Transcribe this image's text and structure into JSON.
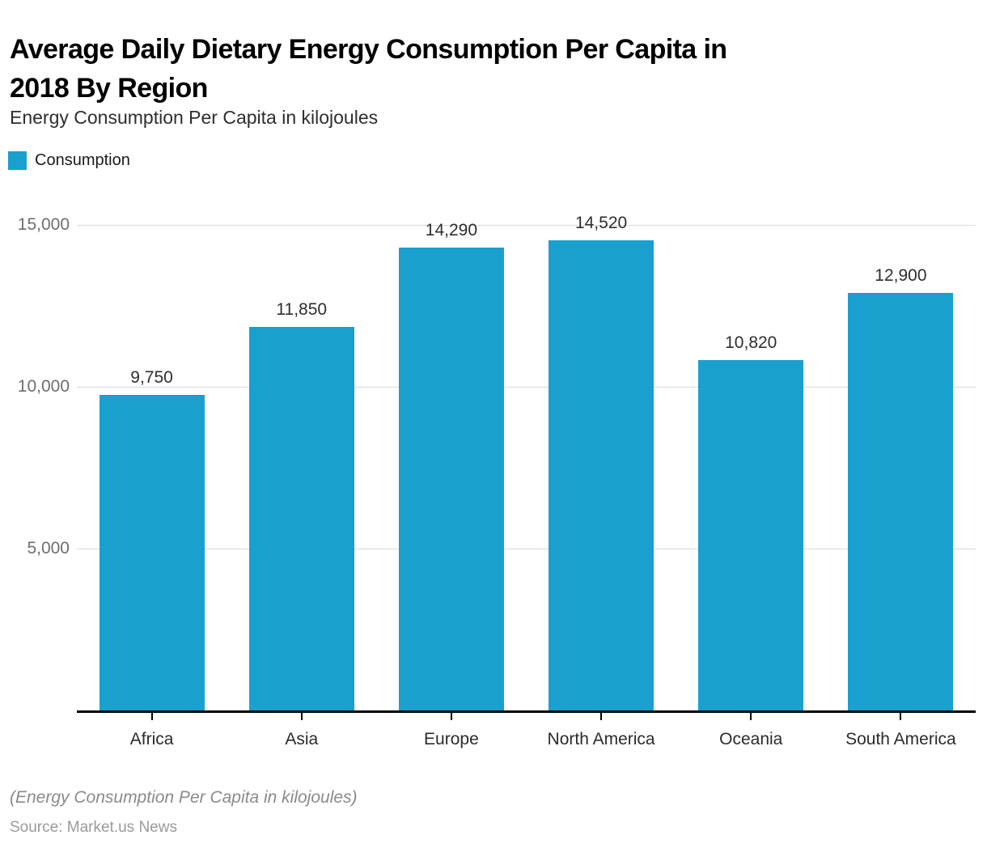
{
  "page": {
    "title": "Average Daily Dietary Energy Consumption Per Capita in 2018 By Region",
    "title_lines": [
      "Average Daily Dietary Energy Consumption Per Capita in",
      "2018 By Region"
    ],
    "subtitle": "Energy Consumption Per Capita in kilojoules",
    "footnote": "(Energy Consumption Per Capita in kilojoules)",
    "source": "Source: Market.us News"
  },
  "legend": {
    "label": "Consumption",
    "swatch_color": "#19A0CE"
  },
  "colors": {
    "bar": "#19A0CE",
    "gridline": "#d9d9d9",
    "axis": "#000000",
    "ytick_text": "#6e6e6e",
    "label_text": "#2e2e2e"
  },
  "chart_data": {
    "type": "bar",
    "title": "Average Daily Dietary Energy Consumption Per Capita in 2018 By Region",
    "ylabel": "Energy Consumption Per Capita in kilojoules",
    "xlabel": "",
    "categories": [
      "Africa",
      "Asia",
      "Europe",
      "North America",
      "Oceania",
      "South America"
    ],
    "series": [
      {
        "name": "Consumption",
        "color": "#19A0CE",
        "values": [
          9750,
          11850,
          14290,
          14520,
          10820,
          12900
        ]
      }
    ],
    "data_labels": [
      "9,750",
      "11,850",
      "14,290",
      "14,520",
      "10,820",
      "12,900"
    ],
    "y_ticks": [
      {
        "value": 5000,
        "label": "5,000"
      },
      {
        "value": 10000,
        "label": "10,000"
      },
      {
        "value": 15000,
        "label": "15,000"
      }
    ],
    "ylim": [
      0,
      15950
    ],
    "grid": true,
    "legend_position": "top-left"
  }
}
